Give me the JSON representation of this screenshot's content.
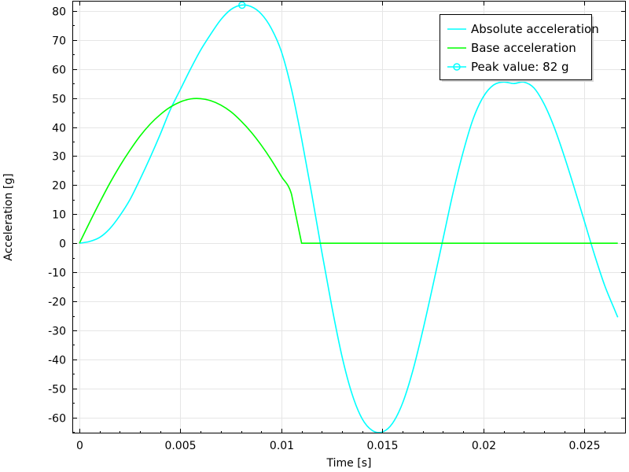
{
  "chart_data": {
    "type": "line",
    "title": "",
    "xlabel": "Time [s]",
    "ylabel": "Acceleration [g]",
    "xlim": [
      -0.00035,
      0.02705
    ],
    "ylim": [
      -65.5,
      83.5
    ],
    "x_ticks": [
      0,
      0.005,
      0.01,
      0.015,
      0.02,
      0.025
    ],
    "x_tick_labels": [
      "0",
      "0.005",
      "0.01",
      "0.015",
      "0.02",
      "0.025"
    ],
    "y_ticks": [
      -60,
      -50,
      -40,
      -30,
      -20,
      -10,
      0,
      10,
      20,
      30,
      40,
      50,
      60,
      70,
      80
    ],
    "y_tick_labels": [
      "-60",
      "-50",
      "-40",
      "-30",
      "-20",
      "-10",
      "0",
      "10",
      "20",
      "30",
      "40",
      "50",
      "60",
      "70",
      "80"
    ],
    "grid": true,
    "legend_position": "top-right",
    "series": [
      {
        "name": "Absolute acceleration",
        "color": "#00ffff",
        "x": [
          0,
          0.0005,
          0.001,
          0.0015,
          0.002,
          0.0025,
          0.003,
          0.0035,
          0.004,
          0.0045,
          0.005,
          0.0055,
          0.006,
          0.0065,
          0.007,
          0.0075,
          0.008,
          0.0085,
          0.009,
          0.0095,
          0.01,
          0.0105,
          0.011,
          0.0115,
          0.012,
          0.0125,
          0.013,
          0.0135,
          0.014,
          0.0145,
          0.015,
          0.0155,
          0.016,
          0.0165,
          0.017,
          0.0175,
          0.018,
          0.0185,
          0.019,
          0.0195,
          0.02,
          0.0205,
          0.021,
          0.0215,
          0.022,
          0.0225,
          0.023,
          0.0235,
          0.024,
          0.0245,
          0.025,
          0.0255,
          0.026,
          0.0265,
          0.02665
        ],
        "y": [
          0,
          0.6,
          2,
          5,
          9.5,
          15,
          22,
          29.5,
          37.5,
          46,
          53,
          60,
          66.5,
          72,
          77,
          80.5,
          82,
          81.5,
          79,
          74,
          66,
          53,
          36,
          17,
          -3,
          -22,
          -39,
          -52,
          -60.5,
          -64.5,
          -65,
          -62,
          -55,
          -44,
          -30,
          -14.5,
          1.5,
          17.5,
          31.5,
          43,
          50.5,
          54.5,
          55.5,
          55,
          55.5,
          53.5,
          48,
          40,
          30,
          19,
          7.5,
          -4,
          -14.5,
          -23,
          -25.5
        ]
      },
      {
        "name": "Base acceleration",
        "color": "#00ff00",
        "x": [
          0,
          0.0005,
          0.001,
          0.0015,
          0.002,
          0.0025,
          0.003,
          0.0035,
          0.004,
          0.0045,
          0.005,
          0.0055,
          0.006,
          0.0065,
          0.007,
          0.0075,
          0.008,
          0.0085,
          0.009,
          0.0095,
          0.01,
          0.0105,
          0.011,
          0.012,
          0.013,
          0.014,
          0.015,
          0.016,
          0.017,
          0.018,
          0.019,
          0.02,
          0.021,
          0.022,
          0.023,
          0.024,
          0.025,
          0.026,
          0.02665
        ],
        "y": [
          0,
          7.1,
          14,
          20.6,
          26.6,
          32,
          36.9,
          41,
          44.3,
          46.9,
          48.7,
          49.7,
          49.8,
          49.1,
          47.6,
          45.3,
          42.1,
          38.3,
          33.8,
          28.7,
          23,
          16.9,
          0,
          0,
          0,
          0,
          0,
          0,
          0,
          0,
          0,
          0,
          0,
          0,
          0,
          0,
          0,
          0,
          0
        ]
      }
    ],
    "peak": {
      "name": "Peak value: 82 g",
      "x": 0.00805,
      "y": 82,
      "color": "#00ffff"
    }
  }
}
